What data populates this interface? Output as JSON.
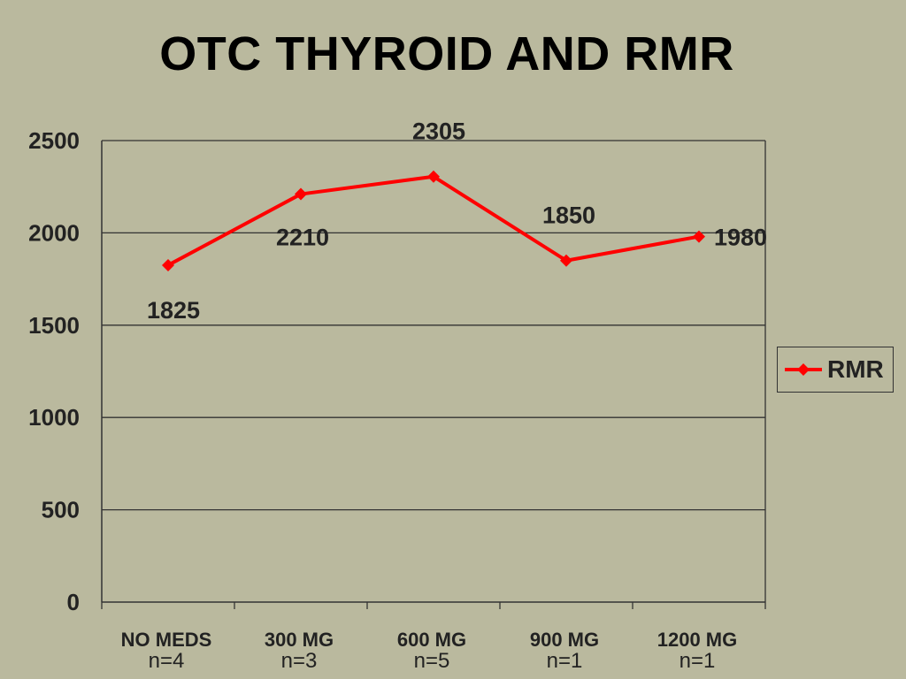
{
  "chart_data": {
    "type": "line",
    "title": "OTC THYROID AND RMR",
    "categories": [
      "NO MEDS",
      "300 MG",
      "600 MG",
      "900 MG",
      "1200 MG"
    ],
    "category_annotations": [
      "n=4",
      "n=3",
      "n=5",
      "n=1",
      "n=1"
    ],
    "series": [
      {
        "name": "RMR",
        "values": [
          1825,
          2210,
          2305,
          1850,
          1980
        ],
        "color": "#ff0000"
      }
    ],
    "data_labels": [
      "1825",
      "2210",
      "2305",
      "1850",
      "1980"
    ],
    "ylim": [
      0,
      2500
    ],
    "yticks": [
      "0",
      "500",
      "1000",
      "1500",
      "2000",
      "2500"
    ],
    "xlabel": "",
    "ylabel": "",
    "grid": "horizontal",
    "legend": {
      "position": "right",
      "entries": [
        "RMR"
      ]
    },
    "colors": {
      "background": "#bab99e",
      "line": "#ff0000",
      "axis": "#333333"
    }
  }
}
